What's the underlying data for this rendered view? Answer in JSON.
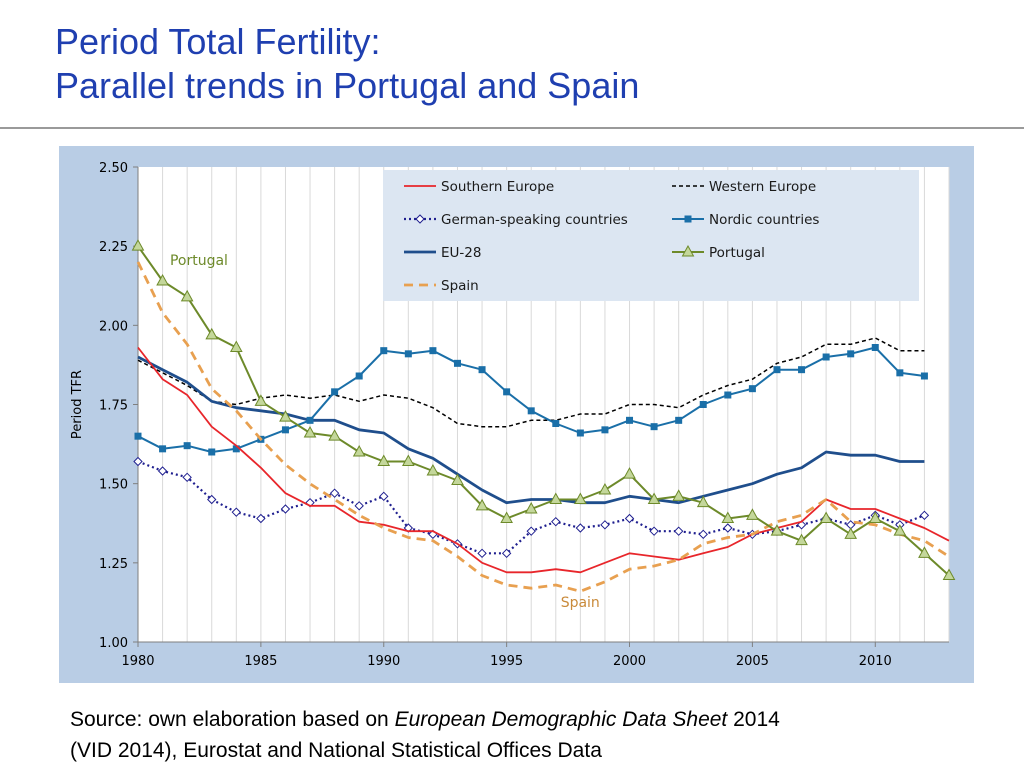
{
  "title": {
    "line1": "Period Total Fertility:",
    "line2": "Parallel trends in Portugal and Spain"
  },
  "source": {
    "prefix": "Source: own elaboration based on ",
    "italic": "European Demographic Data Sheet",
    "suffix1": " 2014",
    "line2": "(VID 2014), Eurostat and National Statistical Offices Data"
  },
  "colors": {
    "frame_bg": "#b9cde5",
    "title": "#1f3fb0",
    "southern": "#e8262b",
    "western": "#000000",
    "german": "#1f1f8f",
    "nordic": "#1a6fa8",
    "eu28": "#1f4e8c",
    "portugal": "#6d8a2a",
    "spain": "#e8a050",
    "grid": "#d9d9d9"
  },
  "chart_data": {
    "type": "line",
    "ylabel": "Period TFR",
    "xlabel": "",
    "xlim": [
      1980,
      2013
    ],
    "ylim": [
      1.0,
      2.5
    ],
    "x_ticks": [
      "1980",
      "1985",
      "1990",
      "1995",
      "2000",
      "2005",
      "2010"
    ],
    "y_ticks": [
      "1.00",
      "1.25",
      "1.50",
      "1.75",
      "2.00",
      "2.25",
      "2.50"
    ],
    "grid": "vertical",
    "legend_position": "top-right",
    "annotations": [
      {
        "text": "Portugal",
        "x": 1981.3,
        "y": 2.19
      },
      {
        "text": "Spain",
        "x": 1997.2,
        "y": 1.11
      }
    ],
    "series": [
      {
        "name": "Southern Europe",
        "start": 1980,
        "values": [
          1.93,
          1.83,
          1.78,
          1.68,
          1.62,
          1.55,
          1.47,
          1.43,
          1.43,
          1.38,
          1.37,
          1.35,
          1.35,
          1.31,
          1.25,
          1.22,
          1.22,
          1.23,
          1.22,
          1.25,
          1.28,
          1.27,
          1.26,
          1.28,
          1.3,
          1.34,
          1.36,
          1.38,
          1.45,
          1.42,
          1.42,
          1.39,
          1.36,
          1.32
        ]
      },
      {
        "name": "Western Europe",
        "start": 1980,
        "values": [
          1.89,
          1.85,
          1.81,
          1.76,
          1.75,
          1.77,
          1.78,
          1.77,
          1.78,
          1.76,
          1.78,
          1.77,
          1.74,
          1.69,
          1.68,
          1.68,
          1.7,
          1.7,
          1.72,
          1.72,
          1.75,
          1.75,
          1.74,
          1.78,
          1.81,
          1.83,
          1.88,
          1.9,
          1.94,
          1.94,
          1.96,
          1.92,
          1.92
        ]
      },
      {
        "name": "German-speaking countries",
        "start": 1980,
        "values": [
          1.57,
          1.54,
          1.52,
          1.45,
          1.41,
          1.39,
          1.42,
          1.44,
          1.47,
          1.43,
          1.46,
          1.36,
          1.34,
          1.31,
          1.28,
          1.28,
          1.35,
          1.38,
          1.36,
          1.37,
          1.39,
          1.35,
          1.35,
          1.34,
          1.36,
          1.34,
          1.35,
          1.37,
          1.39,
          1.37,
          1.4,
          1.37,
          1.4
        ]
      },
      {
        "name": "Nordic countries",
        "start": 1980,
        "values": [
          1.65,
          1.61,
          1.62,
          1.6,
          1.61,
          1.64,
          1.67,
          1.7,
          1.79,
          1.84,
          1.92,
          1.91,
          1.92,
          1.88,
          1.86,
          1.79,
          1.73,
          1.69,
          1.66,
          1.67,
          1.7,
          1.68,
          1.7,
          1.75,
          1.78,
          1.8,
          1.86,
          1.86,
          1.9,
          1.91,
          1.93,
          1.85,
          1.84
        ]
      },
      {
        "name": "EU-28",
        "start": 1980,
        "values": [
          1.9,
          1.86,
          1.82,
          1.76,
          1.74,
          1.73,
          1.72,
          1.7,
          1.7,
          1.67,
          1.66,
          1.61,
          1.58,
          1.53,
          1.48,
          1.44,
          1.45,
          1.45,
          1.44,
          1.44,
          1.46,
          1.45,
          1.44,
          1.46,
          1.48,
          1.5,
          1.53,
          1.55,
          1.6,
          1.59,
          1.59,
          1.57,
          1.57
        ]
      },
      {
        "name": "Portugal",
        "start": 1980,
        "values": [
          2.25,
          2.14,
          2.09,
          1.97,
          1.93,
          1.76,
          1.71,
          1.66,
          1.65,
          1.6,
          1.57,
          1.57,
          1.54,
          1.51,
          1.43,
          1.39,
          1.42,
          1.45,
          1.45,
          1.48,
          1.53,
          1.45,
          1.46,
          1.44,
          1.39,
          1.4,
          1.35,
          1.32,
          1.39,
          1.34,
          1.39,
          1.35,
          1.28,
          1.21
        ]
      },
      {
        "name": "Spain",
        "start": 1980,
        "values": [
          2.2,
          2.04,
          1.94,
          1.8,
          1.73,
          1.64,
          1.56,
          1.5,
          1.45,
          1.4,
          1.36,
          1.33,
          1.32,
          1.27,
          1.21,
          1.18,
          1.17,
          1.18,
          1.16,
          1.19,
          1.23,
          1.24,
          1.26,
          1.31,
          1.33,
          1.34,
          1.38,
          1.4,
          1.45,
          1.38,
          1.37,
          1.34,
          1.32,
          1.27
        ]
      }
    ]
  }
}
